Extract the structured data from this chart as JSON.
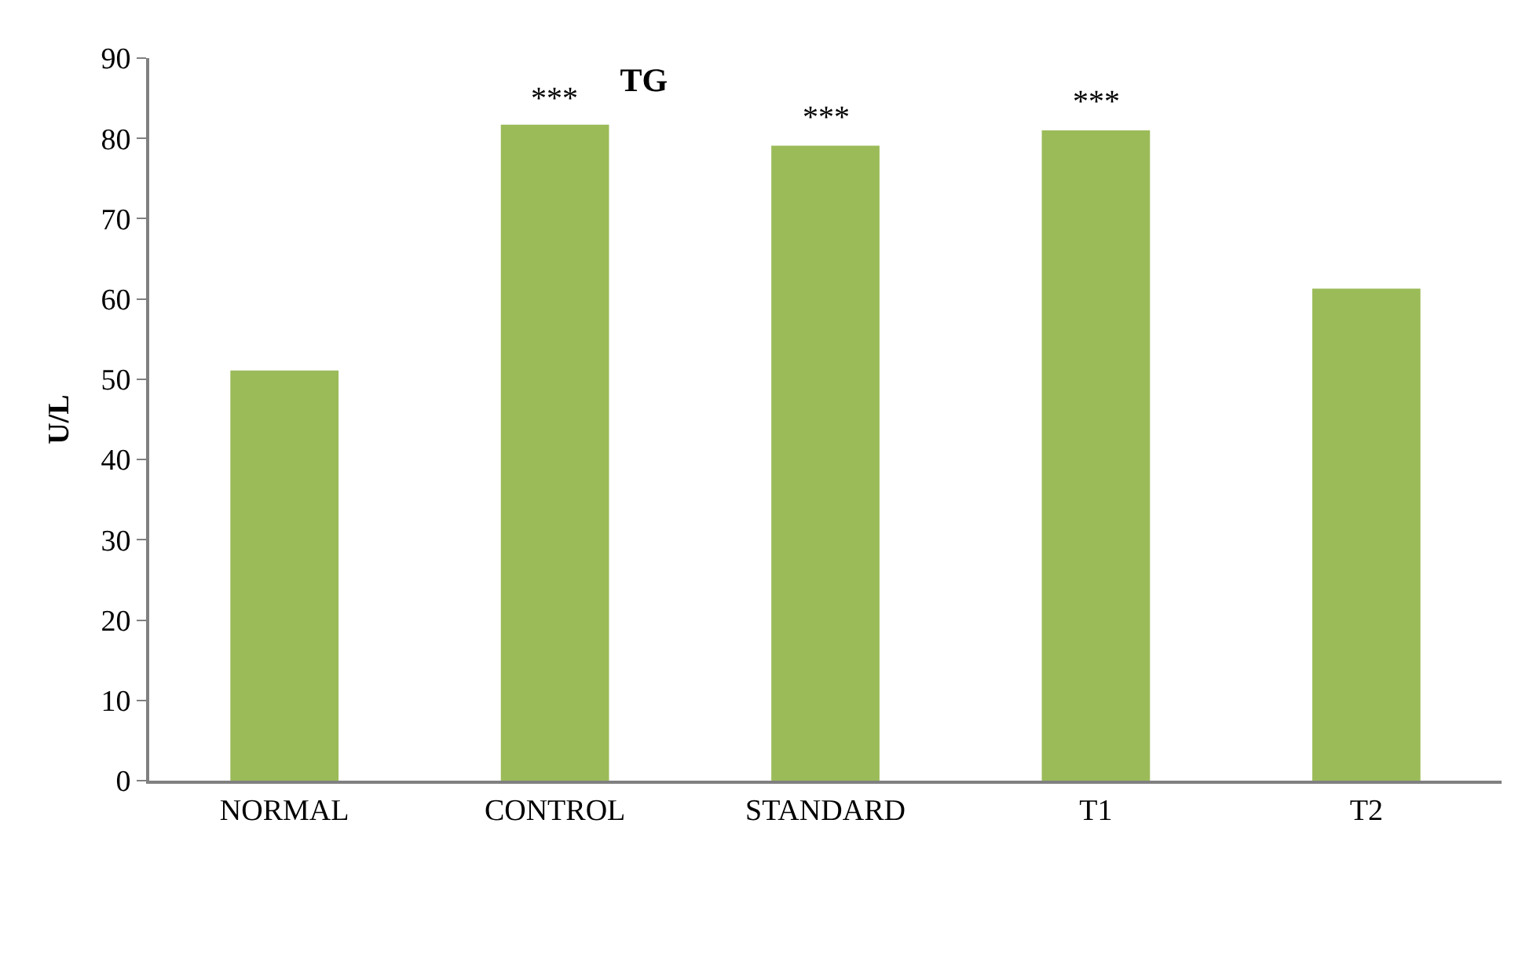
{
  "chart_data": {
    "type": "bar",
    "title": "TG",
    "ylabel": "U/L",
    "categories": [
      "NORMAL",
      "CONTROL",
      "STANDARD",
      "T1",
      "T2"
    ],
    "values": [
      51.1,
      81.7,
      79.1,
      81.0,
      61.3
    ],
    "color": "#9bbb59",
    "ylim": [
      0,
      90
    ],
    "yticks": [
      0,
      10,
      20,
      30,
      40,
      50,
      60,
      70,
      80,
      90
    ],
    "annotations": [
      "***",
      "***",
      "***"
    ]
  }
}
